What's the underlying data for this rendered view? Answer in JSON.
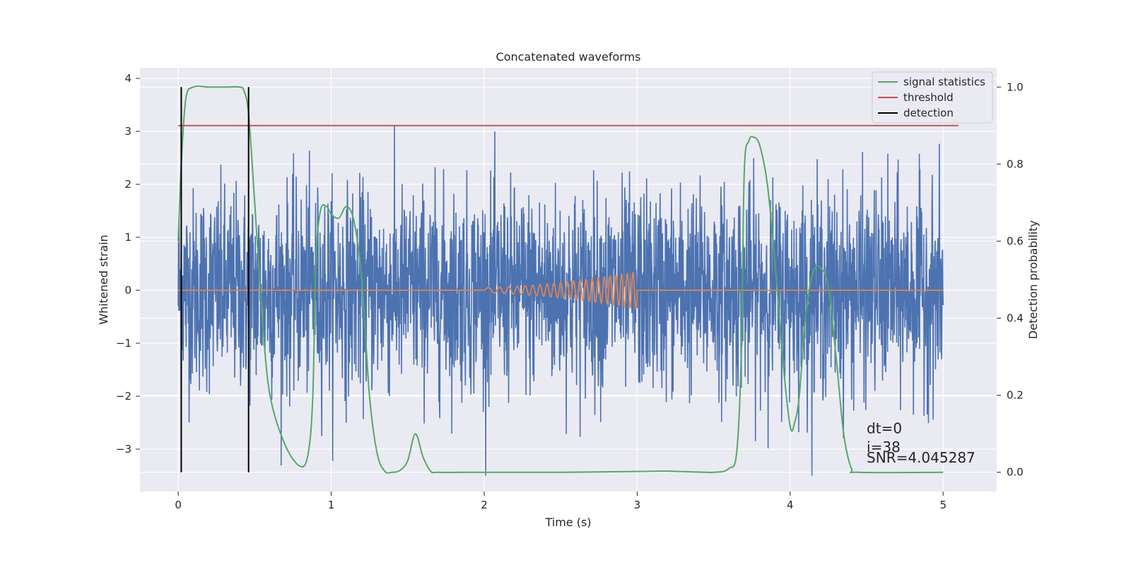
{
  "chart_data": {
    "type": "line",
    "title": "Concatenated waveforms",
    "xlabel": "Time (s)",
    "ylabel": "Whitened strain",
    "y2label": "Detection probability",
    "xlim": [
      -0.25,
      5.35
    ],
    "ylim": [
      -3.8,
      4.2
    ],
    "y2lim": [
      -0.05,
      1.05
    ],
    "xticks": [
      0,
      1,
      2,
      3,
      4,
      5
    ],
    "yticks": [
      -3,
      -2,
      -1,
      0,
      1,
      2,
      3,
      4
    ],
    "y2ticks": [
      0.0,
      0.2,
      0.4,
      0.6,
      0.8,
      1.0
    ],
    "xtick_labels": [
      "0",
      "1",
      "2",
      "3",
      "4",
      "5"
    ],
    "ytick_labels": [
      "−3",
      "−2",
      "−1",
      "0",
      "1",
      "2",
      "3",
      "4"
    ],
    "y2tick_labels": [
      "0.0",
      "0.2",
      "0.4",
      "0.6",
      "0.8",
      "1.0"
    ],
    "grid": true,
    "legend_position": "top-right",
    "series": [
      {
        "key": "strain",
        "axis": "left",
        "color": "#4c72b0",
        "description_kind": "noise",
        "x_range": [
          0,
          5
        ],
        "approx_amplitude": 2.3,
        "peak_max": 3.2,
        "peak_min": -3.5
      },
      {
        "key": "injected",
        "axis": "left",
        "color": "#dd8452",
        "chirp": {
          "start": 2.0,
          "end": 3.0,
          "amp_start": 0.05,
          "amp_end": 0.35,
          "cycles": 22
        },
        "x_range": [
          0,
          5
        ]
      },
      {
        "key": "signal_statistics",
        "name": "signal statistics",
        "axis": "right",
        "color": "#55a868",
        "x": [
          0,
          0.02,
          0.05,
          0.1,
          0.2,
          0.3,
          0.4,
          0.43,
          0.46,
          0.5,
          0.55,
          0.6,
          0.7,
          0.8,
          0.85,
          0.88,
          0.9,
          0.93,
          0.97,
          1.0,
          1.05,
          1.1,
          1.15,
          1.2,
          1.25,
          1.3,
          1.35,
          1.4,
          1.45,
          1.5,
          1.55,
          1.6,
          1.65,
          1.7,
          2.0,
          2.5,
          3.0,
          3.2,
          3.5,
          3.6,
          3.65,
          3.68,
          3.7,
          3.73,
          3.76,
          3.8,
          3.85,
          3.9,
          3.95,
          4.0,
          4.03,
          4.06,
          4.1,
          4.15,
          4.2,
          4.25,
          4.3,
          4.35,
          4.4,
          4.45,
          5.0
        ],
        "y": [
          0.6,
          0.8,
          0.97,
          1.0,
          1.0,
          1.0,
          1.0,
          0.99,
          0.93,
          0.7,
          0.4,
          0.2,
          0.07,
          0.015,
          0.05,
          0.2,
          0.55,
          0.68,
          0.69,
          0.67,
          0.66,
          0.69,
          0.65,
          0.5,
          0.2,
          0.05,
          0.003,
          0.0,
          0.005,
          0.03,
          0.1,
          0.04,
          0.003,
          0.0,
          0.0,
          0.0,
          0.002,
          0.003,
          0.0,
          0.01,
          0.05,
          0.3,
          0.78,
          0.86,
          0.87,
          0.85,
          0.75,
          0.55,
          0.3,
          0.12,
          0.13,
          0.2,
          0.4,
          0.52,
          0.53,
          0.48,
          0.3,
          0.1,
          0.01,
          0.0,
          0.0
        ]
      },
      {
        "key": "threshold",
        "name": "threshold",
        "axis": "right",
        "color": "#c44e52",
        "x": [
          0,
          5.1
        ],
        "y": [
          0.9,
          0.9
        ]
      },
      {
        "key": "detection",
        "name": "detection",
        "axis": "right",
        "color": "#000000",
        "vlines": [
          0.02,
          0.46
        ],
        "ymin": 0.0,
        "ymax": 1.0
      }
    ],
    "annotations": [
      {
        "text": "dt=0",
        "x": 4.5,
        "y": -2.7
      },
      {
        "text": "i=38",
        "x": 4.5,
        "y": -3.05
      },
      {
        "text": "SNR=4.045287",
        "x": 4.5,
        "y": -3.25
      }
    ]
  }
}
